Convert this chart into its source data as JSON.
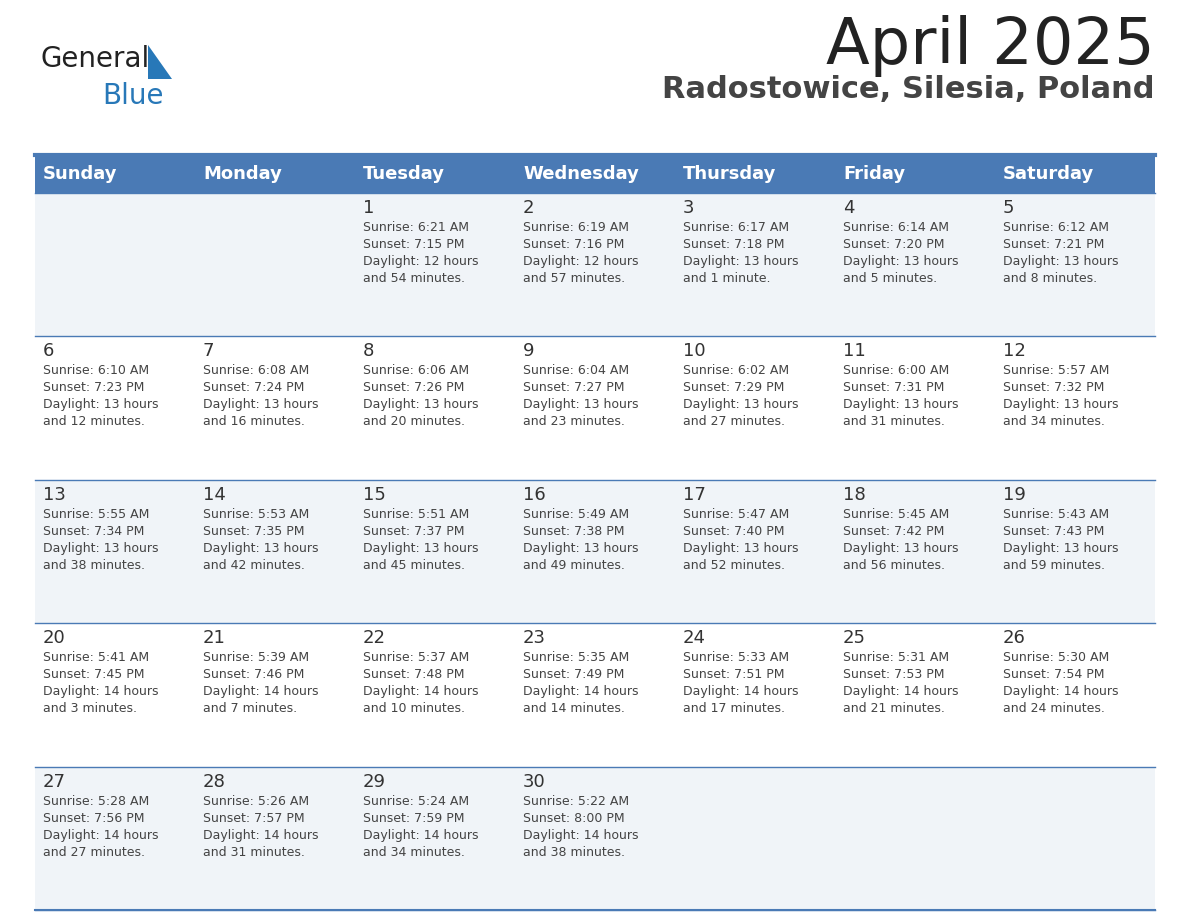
{
  "title": "April 2025",
  "subtitle": "Radostowice, Silesia, Poland",
  "header_color": "#4a7ab5",
  "header_text_color": "#ffffff",
  "cell_bg_light": "#f0f4f8",
  "cell_bg_white": "#ffffff",
  "day_number_color": "#333333",
  "cell_text_color": "#444444",
  "border_color": "#4a7ab5",
  "weekdays": [
    "Sunday",
    "Monday",
    "Tuesday",
    "Wednesday",
    "Thursday",
    "Friday",
    "Saturday"
  ],
  "weeks": [
    [
      {
        "day": null,
        "text": ""
      },
      {
        "day": null,
        "text": ""
      },
      {
        "day": 1,
        "text": "Sunrise: 6:21 AM\nSunset: 7:15 PM\nDaylight: 12 hours\nand 54 minutes."
      },
      {
        "day": 2,
        "text": "Sunrise: 6:19 AM\nSunset: 7:16 PM\nDaylight: 12 hours\nand 57 minutes."
      },
      {
        "day": 3,
        "text": "Sunrise: 6:17 AM\nSunset: 7:18 PM\nDaylight: 13 hours\nand 1 minute."
      },
      {
        "day": 4,
        "text": "Sunrise: 6:14 AM\nSunset: 7:20 PM\nDaylight: 13 hours\nand 5 minutes."
      },
      {
        "day": 5,
        "text": "Sunrise: 6:12 AM\nSunset: 7:21 PM\nDaylight: 13 hours\nand 8 minutes."
      }
    ],
    [
      {
        "day": 6,
        "text": "Sunrise: 6:10 AM\nSunset: 7:23 PM\nDaylight: 13 hours\nand 12 minutes."
      },
      {
        "day": 7,
        "text": "Sunrise: 6:08 AM\nSunset: 7:24 PM\nDaylight: 13 hours\nand 16 minutes."
      },
      {
        "day": 8,
        "text": "Sunrise: 6:06 AM\nSunset: 7:26 PM\nDaylight: 13 hours\nand 20 minutes."
      },
      {
        "day": 9,
        "text": "Sunrise: 6:04 AM\nSunset: 7:27 PM\nDaylight: 13 hours\nand 23 minutes."
      },
      {
        "day": 10,
        "text": "Sunrise: 6:02 AM\nSunset: 7:29 PM\nDaylight: 13 hours\nand 27 minutes."
      },
      {
        "day": 11,
        "text": "Sunrise: 6:00 AM\nSunset: 7:31 PM\nDaylight: 13 hours\nand 31 minutes."
      },
      {
        "day": 12,
        "text": "Sunrise: 5:57 AM\nSunset: 7:32 PM\nDaylight: 13 hours\nand 34 minutes."
      }
    ],
    [
      {
        "day": 13,
        "text": "Sunrise: 5:55 AM\nSunset: 7:34 PM\nDaylight: 13 hours\nand 38 minutes."
      },
      {
        "day": 14,
        "text": "Sunrise: 5:53 AM\nSunset: 7:35 PM\nDaylight: 13 hours\nand 42 minutes."
      },
      {
        "day": 15,
        "text": "Sunrise: 5:51 AM\nSunset: 7:37 PM\nDaylight: 13 hours\nand 45 minutes."
      },
      {
        "day": 16,
        "text": "Sunrise: 5:49 AM\nSunset: 7:38 PM\nDaylight: 13 hours\nand 49 minutes."
      },
      {
        "day": 17,
        "text": "Sunrise: 5:47 AM\nSunset: 7:40 PM\nDaylight: 13 hours\nand 52 minutes."
      },
      {
        "day": 18,
        "text": "Sunrise: 5:45 AM\nSunset: 7:42 PM\nDaylight: 13 hours\nand 56 minutes."
      },
      {
        "day": 19,
        "text": "Sunrise: 5:43 AM\nSunset: 7:43 PM\nDaylight: 13 hours\nand 59 minutes."
      }
    ],
    [
      {
        "day": 20,
        "text": "Sunrise: 5:41 AM\nSunset: 7:45 PM\nDaylight: 14 hours\nand 3 minutes."
      },
      {
        "day": 21,
        "text": "Sunrise: 5:39 AM\nSunset: 7:46 PM\nDaylight: 14 hours\nand 7 minutes."
      },
      {
        "day": 22,
        "text": "Sunrise: 5:37 AM\nSunset: 7:48 PM\nDaylight: 14 hours\nand 10 minutes."
      },
      {
        "day": 23,
        "text": "Sunrise: 5:35 AM\nSunset: 7:49 PM\nDaylight: 14 hours\nand 14 minutes."
      },
      {
        "day": 24,
        "text": "Sunrise: 5:33 AM\nSunset: 7:51 PM\nDaylight: 14 hours\nand 17 minutes."
      },
      {
        "day": 25,
        "text": "Sunrise: 5:31 AM\nSunset: 7:53 PM\nDaylight: 14 hours\nand 21 minutes."
      },
      {
        "day": 26,
        "text": "Sunrise: 5:30 AM\nSunset: 7:54 PM\nDaylight: 14 hours\nand 24 minutes."
      }
    ],
    [
      {
        "day": 27,
        "text": "Sunrise: 5:28 AM\nSunset: 7:56 PM\nDaylight: 14 hours\nand 27 minutes."
      },
      {
        "day": 28,
        "text": "Sunrise: 5:26 AM\nSunset: 7:57 PM\nDaylight: 14 hours\nand 31 minutes."
      },
      {
        "day": 29,
        "text": "Sunrise: 5:24 AM\nSunset: 7:59 PM\nDaylight: 14 hours\nand 34 minutes."
      },
      {
        "day": 30,
        "text": "Sunrise: 5:22 AM\nSunset: 8:00 PM\nDaylight: 14 hours\nand 38 minutes."
      },
      {
        "day": null,
        "text": ""
      },
      {
        "day": null,
        "text": ""
      },
      {
        "day": null,
        "text": ""
      }
    ]
  ],
  "logo_general_color": "#222222",
  "logo_blue_color": "#2878b8",
  "logo_triangle_color": "#2878b8",
  "title_color": "#222222",
  "subtitle_color": "#444444"
}
